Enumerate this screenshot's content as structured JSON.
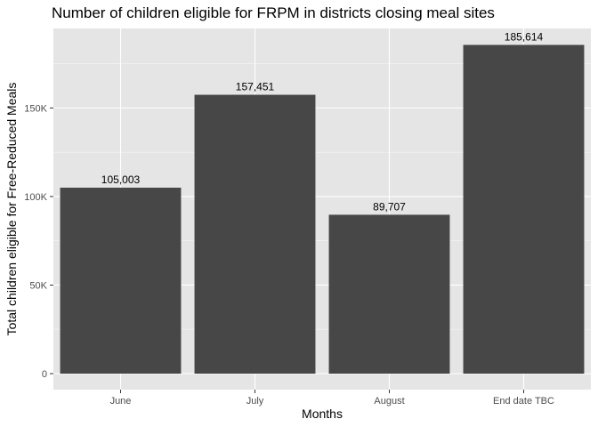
{
  "chart_data": {
    "type": "bar",
    "title": "Number of children eligible for FRPM in districts closing meal sites",
    "xlabel": "Months",
    "ylabel": "Total children eligible for Free-Reduced Meals",
    "categories": [
      "June",
      "July",
      "August",
      "End date TBC"
    ],
    "values": [
      105003,
      157451,
      89707,
      185614
    ],
    "data_labels": [
      "105,003",
      "157,451",
      "89,707",
      "185,614"
    ],
    "ylim": [
      0,
      194894
    ],
    "yticks": [
      0,
      50000,
      100000,
      150000
    ],
    "ytick_labels": [
      "0",
      "50K",
      "100K",
      "150K"
    ],
    "grid": true,
    "legend": "none"
  },
  "colors": {
    "panel": "#e5e5e5",
    "grid_major": "#ffffff",
    "bar": "#474747",
    "tick_text": "#4d4d4d",
    "tick_mark": "#333333"
  }
}
